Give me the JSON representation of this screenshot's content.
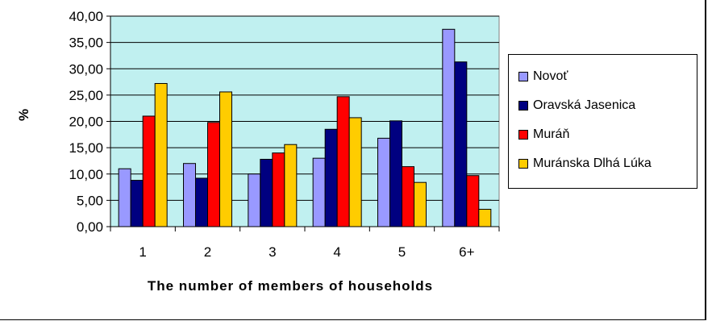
{
  "chart_data": {
    "type": "bar",
    "title": "",
    "xlabel": "The number of members of households",
    "ylabel": "%",
    "categories": [
      "1",
      "2",
      "3",
      "4",
      "5",
      "6+"
    ],
    "yticks": [
      "0,00",
      "5,00",
      "10,00",
      "15,00",
      "20,00",
      "25,00",
      "30,00",
      "35,00",
      "40,00"
    ],
    "ylim": [
      0,
      40
    ],
    "grid": true,
    "legend_position": "right",
    "plot_background": "#c0f0f0",
    "series": [
      {
        "name": "Novoť",
        "color": "#9999ff",
        "values": [
          11.0,
          12.0,
          10.0,
          13.0,
          16.8,
          37.5
        ]
      },
      {
        "name": "Oravská Jasenica",
        "color": "#000080",
        "values": [
          8.8,
          9.2,
          12.8,
          18.5,
          20.1,
          31.3
        ]
      },
      {
        "name": "Muráň",
        "color": "#ff0000",
        "values": [
          21.0,
          19.8,
          14.0,
          24.7,
          11.4,
          9.7
        ]
      },
      {
        "name": "Muránska Dlhá Lúka",
        "color": "#ffcc00",
        "values": [
          27.2,
          25.6,
          15.6,
          20.7,
          8.4,
          3.3
        ]
      }
    ]
  }
}
